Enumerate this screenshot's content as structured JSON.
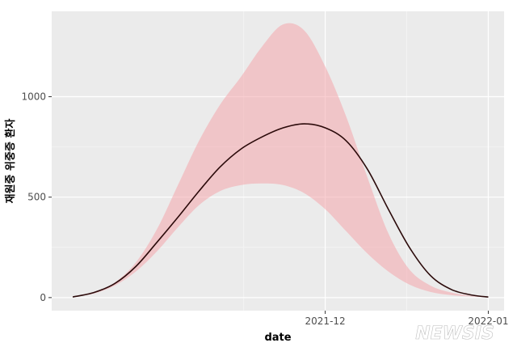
{
  "chart_data": {
    "type": "area",
    "title": "",
    "xlabel": "date",
    "ylabel": "재원중 위중증 환자",
    "x": [
      "2021-10-14",
      "2021-10-18",
      "2021-10-22",
      "2021-10-26",
      "2021-10-30",
      "2021-11-03",
      "2021-11-07",
      "2021-11-11",
      "2021-11-15",
      "2021-11-19",
      "2021-11-23",
      "2021-11-27",
      "2021-12-01",
      "2021-12-05",
      "2021-12-09",
      "2021-12-13",
      "2021-12-17",
      "2021-12-21",
      "2021-12-25",
      "2021-12-29",
      "2022-01-01"
    ],
    "series": [
      {
        "values": [
          3,
          25,
          70,
          155,
          275,
          400,
          530,
          650,
          740,
          800,
          845,
          865,
          845,
          780,
          640,
          440,
          250,
          110,
          40,
          12,
          3
        ]
      }
    ],
    "bands": [
      {
        "lower": [
          3,
          20,
          60,
          130,
          230,
          350,
          460,
          530,
          560,
          568,
          560,
          520,
          440,
          330,
          220,
          130,
          65,
          28,
          12,
          5,
          2
        ],
        "upper": [
          3,
          25,
          75,
          175,
          340,
          560,
          780,
          960,
          1100,
          1250,
          1360,
          1330,
          1150,
          900,
          600,
          320,
          140,
          60,
          25,
          8,
          3
        ]
      }
    ],
    "xticks": [
      {
        "value": "2021-12-01",
        "label": "2021-12"
      },
      {
        "value": "2022-01-01",
        "label": "2022-01"
      }
    ],
    "yticks": [
      0,
      500,
      1000
    ],
    "xlim": [
      "2021-10-10",
      "2022-01-04"
    ],
    "ylim": [
      -65,
      1425
    ],
    "grid": true,
    "colors": {
      "panel": "#ebebeb",
      "grid_major": "#ffffff",
      "grid_minor": "#f5f5f5",
      "band_fill": "#f4a6ab",
      "band_opacity": "0.55",
      "line": "#2b0a0a"
    }
  },
  "watermark": "NEWSIS"
}
